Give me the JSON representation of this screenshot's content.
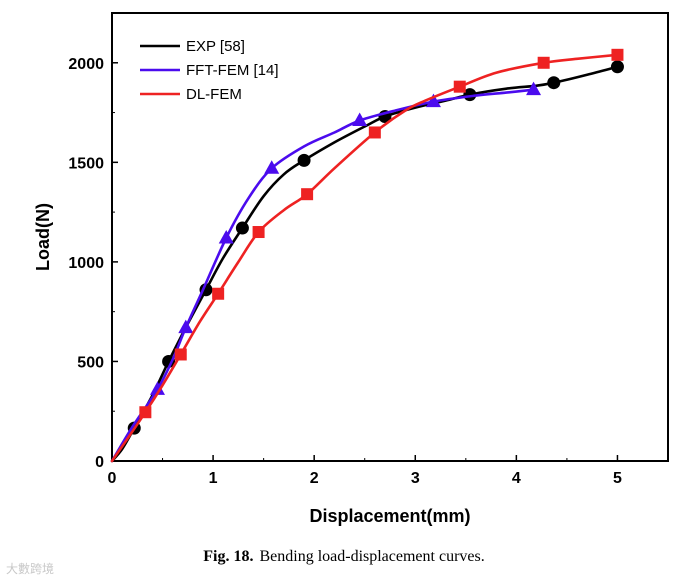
{
  "chart_data": {
    "type": "line",
    "title": "",
    "xlabel": "Displacement(mm)",
    "ylabel": "Load(N)",
    "xlim": [
      0,
      5.5
    ],
    "ylim": [
      0,
      2250
    ],
    "xticks": [
      0,
      1,
      2,
      3,
      4,
      5
    ],
    "yticks": [
      0,
      500,
      1000,
      1500,
      2000
    ],
    "legend_position": "top-left",
    "series": [
      {
        "name": "EXP [58]",
        "color": "#000000",
        "marker": "circle",
        "curve": [
          [
            0,
            0
          ],
          [
            0.1,
            60
          ],
          [
            0.22,
            165
          ],
          [
            0.4,
            330
          ],
          [
            0.56,
            500
          ],
          [
            0.75,
            690
          ],
          [
            0.93,
            860
          ],
          [
            1.1,
            1020
          ],
          [
            1.29,
            1170
          ],
          [
            1.5,
            1330
          ],
          [
            1.7,
            1440
          ],
          [
            1.9,
            1510
          ],
          [
            2.2,
            1600
          ],
          [
            2.5,
            1680
          ],
          [
            2.7,
            1730
          ],
          [
            3.0,
            1775
          ],
          [
            3.3,
            1810
          ],
          [
            3.54,
            1840
          ],
          [
            3.9,
            1870
          ],
          [
            4.2,
            1885
          ],
          [
            4.37,
            1900
          ],
          [
            4.7,
            1940
          ],
          [
            5.0,
            1980
          ]
        ],
        "markers": [
          [
            0.22,
            165
          ],
          [
            0.56,
            500
          ],
          [
            0.93,
            860
          ],
          [
            1.29,
            1170
          ],
          [
            1.9,
            1510
          ],
          [
            2.7,
            1730
          ],
          [
            3.54,
            1840
          ],
          [
            4.37,
            1900
          ],
          [
            5.0,
            1980
          ]
        ]
      },
      {
        "name": "FFT-FEM [14]",
        "color": "#4B0BEE",
        "marker": "triangle",
        "curve": [
          [
            0,
            0
          ],
          [
            0.2,
            170
          ],
          [
            0.45,
            360
          ],
          [
            0.6,
            510
          ],
          [
            0.73,
            670
          ],
          [
            0.9,
            860
          ],
          [
            1.13,
            1120
          ],
          [
            1.35,
            1320
          ],
          [
            1.58,
            1470
          ],
          [
            1.9,
            1580
          ],
          [
            2.2,
            1650
          ],
          [
            2.45,
            1710
          ],
          [
            2.8,
            1760
          ],
          [
            3.18,
            1805
          ],
          [
            3.6,
            1835
          ],
          [
            3.9,
            1850
          ],
          [
            4.17,
            1865
          ]
        ],
        "markers": [
          [
            0.45,
            360
          ],
          [
            0.73,
            670
          ],
          [
            1.13,
            1120
          ],
          [
            1.58,
            1470
          ],
          [
            2.45,
            1710
          ],
          [
            3.18,
            1805
          ],
          [
            4.17,
            1865
          ]
        ]
      },
      {
        "name": "DL-FEM",
        "color": "#EE2222",
        "marker": "square",
        "curve": [
          [
            0,
            0
          ],
          [
            0.15,
            110
          ],
          [
            0.33,
            245
          ],
          [
            0.5,
            380
          ],
          [
            0.68,
            535
          ],
          [
            0.87,
            700
          ],
          [
            1.05,
            840
          ],
          [
            1.25,
            1000
          ],
          [
            1.45,
            1150
          ],
          [
            1.7,
            1260
          ],
          [
            1.93,
            1340
          ],
          [
            2.2,
            1470
          ],
          [
            2.6,
            1650
          ],
          [
            2.9,
            1760
          ],
          [
            3.1,
            1810
          ],
          [
            3.44,
            1880
          ],
          [
            3.8,
            1950
          ],
          [
            4.27,
            2000
          ],
          [
            4.6,
            2020
          ],
          [
            5.0,
            2040
          ]
        ],
        "markers": [
          [
            0.33,
            245
          ],
          [
            0.68,
            535
          ],
          [
            1.05,
            840
          ],
          [
            1.45,
            1150
          ],
          [
            1.93,
            1340
          ],
          [
            2.6,
            1650
          ],
          [
            3.44,
            1880
          ],
          [
            4.27,
            2000
          ],
          [
            5.0,
            2040
          ]
        ]
      }
    ]
  },
  "caption": {
    "label": "Fig. 18.",
    "text": "Bending load-displacement curves."
  },
  "watermark": "大數跨境"
}
